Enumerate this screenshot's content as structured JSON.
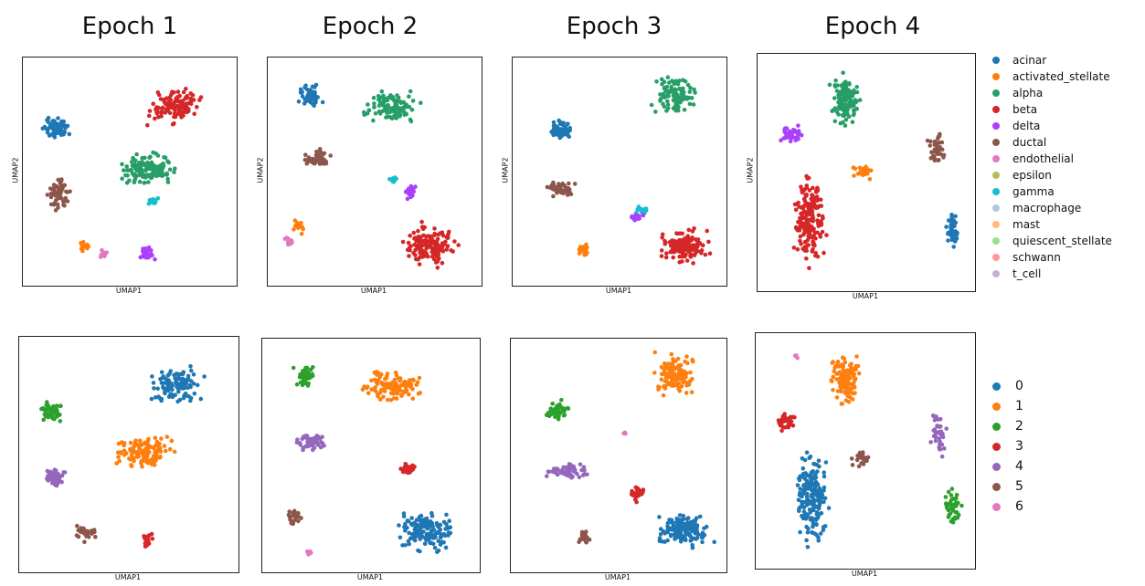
{
  "titles": [
    "Epoch 1",
    "Epoch 2",
    "Epoch 3",
    "Epoch 4"
  ],
  "axis": {
    "x": "UMAP1",
    "y": "UMAP2"
  },
  "legend_celltype": [
    {
      "label": "acinar",
      "color": "#1f77b4"
    },
    {
      "label": "activated_stellate",
      "color": "#ff7f0e"
    },
    {
      "label": "alpha",
      "color": "#279e68"
    },
    {
      "label": "beta",
      "color": "#d62728"
    },
    {
      "label": "delta",
      "color": "#aa40fc"
    },
    {
      "label": "ductal",
      "color": "#8c564b"
    },
    {
      "label": "endothelial",
      "color": "#e377c2"
    },
    {
      "label": "epsilon",
      "color": "#b5bd61"
    },
    {
      "label": "gamma",
      "color": "#17becf"
    },
    {
      "label": "macrophage",
      "color": "#aec7e8"
    },
    {
      "label": "mast",
      "color": "#ffbb78"
    },
    {
      "label": "quiescent_stellate",
      "color": "#98df8a"
    },
    {
      "label": "schwann",
      "color": "#ff9896"
    },
    {
      "label": "t_cell",
      "color": "#c5b0d5"
    }
  ],
  "legend_cluster": [
    {
      "label": "0",
      "color": "#1f77b4"
    },
    {
      "label": "1",
      "color": "#ff7f0e"
    },
    {
      "label": "2",
      "color": "#2ca02c"
    },
    {
      "label": "3",
      "color": "#d62728"
    },
    {
      "label": "4",
      "color": "#9467bd"
    },
    {
      "label": "5",
      "color": "#8c564b"
    },
    {
      "label": "6",
      "color": "#e377c2"
    }
  ],
  "chart_data": [
    {
      "type": "scatter",
      "title": "Epoch 1",
      "xlabel": "UMAP1",
      "ylabel": "UMAP2",
      "color_by": "cell_type",
      "clusters": [
        {
          "label": "beta",
          "x": 0.72,
          "y": 0.8,
          "rx": 0.16,
          "ry": 0.1,
          "n": 120
        },
        {
          "label": "acinar",
          "x": 0.14,
          "y": 0.7,
          "rx": 0.08,
          "ry": 0.06,
          "n": 60
        },
        {
          "label": "ductal",
          "x": 0.15,
          "y": 0.4,
          "rx": 0.07,
          "ry": 0.1,
          "n": 60
        },
        {
          "label": "alpha",
          "x": 0.58,
          "y": 0.51,
          "rx": 0.18,
          "ry": 0.09,
          "n": 130
        },
        {
          "label": "gamma",
          "x": 0.62,
          "y": 0.36,
          "rx": 0.04,
          "ry": 0.03,
          "n": 15
        },
        {
          "label": "activated_stellate",
          "x": 0.27,
          "y": 0.15,
          "rx": 0.04,
          "ry": 0.03,
          "n": 15
        },
        {
          "label": "endothelial",
          "x": 0.37,
          "y": 0.12,
          "rx": 0.03,
          "ry": 0.03,
          "n": 10
        },
        {
          "label": "delta",
          "x": 0.59,
          "y": 0.12,
          "rx": 0.05,
          "ry": 0.05,
          "n": 30
        }
      ]
    },
    {
      "type": "scatter",
      "title": "Epoch 2",
      "xlabel": "UMAP1",
      "ylabel": "UMAP2",
      "color_by": "cell_type",
      "clusters": [
        {
          "label": "acinar",
          "x": 0.18,
          "y": 0.85,
          "rx": 0.07,
          "ry": 0.07,
          "n": 50
        },
        {
          "label": "alpha",
          "x": 0.58,
          "y": 0.8,
          "rx": 0.17,
          "ry": 0.09,
          "n": 110
        },
        {
          "label": "ductal",
          "x": 0.22,
          "y": 0.56,
          "rx": 0.09,
          "ry": 0.05,
          "n": 50
        },
        {
          "label": "gamma",
          "x": 0.59,
          "y": 0.46,
          "rx": 0.03,
          "ry": 0.03,
          "n": 10
        },
        {
          "label": "delta",
          "x": 0.68,
          "y": 0.41,
          "rx": 0.04,
          "ry": 0.05,
          "n": 25
        },
        {
          "label": "beta",
          "x": 0.76,
          "y": 0.16,
          "rx": 0.17,
          "ry": 0.12,
          "n": 140
        },
        {
          "label": "activated_stellate",
          "x": 0.13,
          "y": 0.25,
          "rx": 0.04,
          "ry": 0.04,
          "n": 15
        },
        {
          "label": "endothelial",
          "x": 0.08,
          "y": 0.18,
          "rx": 0.03,
          "ry": 0.03,
          "n": 10
        }
      ]
    },
    {
      "type": "scatter",
      "title": "Epoch 3",
      "xlabel": "UMAP1",
      "ylabel": "UMAP2",
      "color_by": "cell_type",
      "clusters": [
        {
          "label": "alpha",
          "x": 0.77,
          "y": 0.85,
          "rx": 0.13,
          "ry": 0.11,
          "n": 110
        },
        {
          "label": "acinar",
          "x": 0.21,
          "y": 0.69,
          "rx": 0.07,
          "ry": 0.06,
          "n": 50
        },
        {
          "label": "ductal",
          "x": 0.22,
          "y": 0.42,
          "rx": 0.11,
          "ry": 0.04,
          "n": 50
        },
        {
          "label": "gamma",
          "x": 0.61,
          "y": 0.32,
          "rx": 0.04,
          "ry": 0.03,
          "n": 15
        },
        {
          "label": "delta",
          "x": 0.58,
          "y": 0.29,
          "rx": 0.05,
          "ry": 0.03,
          "n": 20
        },
        {
          "label": "beta",
          "x": 0.82,
          "y": 0.16,
          "rx": 0.16,
          "ry": 0.1,
          "n": 140
        },
        {
          "label": "activated_stellate",
          "x": 0.32,
          "y": 0.13,
          "rx": 0.04,
          "ry": 0.05,
          "n": 20
        }
      ]
    },
    {
      "type": "scatter",
      "title": "Epoch 4",
      "xlabel": "UMAP1",
      "ylabel": "UMAP2",
      "color_by": "cell_type",
      "clusters": [
        {
          "label": "alpha",
          "x": 0.4,
          "y": 0.82,
          "rx": 0.1,
          "ry": 0.14,
          "n": 120
        },
        {
          "label": "delta",
          "x": 0.14,
          "y": 0.67,
          "rx": 0.06,
          "ry": 0.05,
          "n": 40
        },
        {
          "label": "beta",
          "x": 0.22,
          "y": 0.3,
          "rx": 0.1,
          "ry": 0.24,
          "n": 180
        },
        {
          "label": "activated_stellate",
          "x": 0.49,
          "y": 0.5,
          "rx": 0.06,
          "ry": 0.04,
          "n": 25
        },
        {
          "label": "ductal",
          "x": 0.84,
          "y": 0.6,
          "rx": 0.05,
          "ry": 0.11,
          "n": 40
        },
        {
          "label": "acinar",
          "x": 0.92,
          "y": 0.25,
          "rx": 0.04,
          "ry": 0.11,
          "n": 40
        }
      ]
    },
    {
      "type": "scatter",
      "title": "",
      "xlabel": "UMAP1",
      "ylabel": "",
      "color_by": "cluster",
      "clusters": [
        {
          "label": "0",
          "x": 0.73,
          "y": 0.81,
          "rx": 0.16,
          "ry": 0.1,
          "n": 120
        },
        {
          "label": "2",
          "x": 0.13,
          "y": 0.7,
          "rx": 0.07,
          "ry": 0.06,
          "n": 55
        },
        {
          "label": "1",
          "x": 0.57,
          "y": 0.51,
          "rx": 0.18,
          "ry": 0.09,
          "n": 130
        },
        {
          "label": "4",
          "x": 0.15,
          "y": 0.4,
          "rx": 0.07,
          "ry": 0.05,
          "n": 45
        },
        {
          "label": "5",
          "x": 0.3,
          "y": 0.15,
          "rx": 0.07,
          "ry": 0.05,
          "n": 25
        },
        {
          "label": "3",
          "x": 0.59,
          "y": 0.12,
          "rx": 0.04,
          "ry": 0.05,
          "n": 25
        }
      ]
    },
    {
      "type": "scatter",
      "title": "",
      "xlabel": "UMAP1",
      "ylabel": "",
      "color_by": "cluster",
      "clusters": [
        {
          "label": "2",
          "x": 0.18,
          "y": 0.86,
          "rx": 0.06,
          "ry": 0.07,
          "n": 45
        },
        {
          "label": "1",
          "x": 0.6,
          "y": 0.81,
          "rx": 0.17,
          "ry": 0.09,
          "n": 110
        },
        {
          "label": "4",
          "x": 0.22,
          "y": 0.56,
          "rx": 0.09,
          "ry": 0.05,
          "n": 45
        },
        {
          "label": "3",
          "x": 0.68,
          "y": 0.44,
          "rx": 0.06,
          "ry": 0.05,
          "n": 25
        },
        {
          "label": "0",
          "x": 0.76,
          "y": 0.16,
          "rx": 0.16,
          "ry": 0.12,
          "n": 140
        },
        {
          "label": "5",
          "x": 0.13,
          "y": 0.23,
          "rx": 0.04,
          "ry": 0.06,
          "n": 20
        },
        {
          "label": "6",
          "x": 0.2,
          "y": 0.06,
          "rx": 0.02,
          "ry": 0.02,
          "n": 5
        }
      ]
    },
    {
      "type": "scatter",
      "title": "",
      "xlabel": "UMAP1",
      "ylabel": "",
      "color_by": "cluster",
      "clusters": [
        {
          "label": "1",
          "x": 0.77,
          "y": 0.86,
          "rx": 0.13,
          "ry": 0.11,
          "n": 110
        },
        {
          "label": "2",
          "x": 0.2,
          "y": 0.7,
          "rx": 0.07,
          "ry": 0.06,
          "n": 45
        },
        {
          "label": "4",
          "x": 0.25,
          "y": 0.43,
          "rx": 0.13,
          "ry": 0.04,
          "n": 50
        },
        {
          "label": "3",
          "x": 0.59,
          "y": 0.33,
          "rx": 0.06,
          "ry": 0.05,
          "n": 30
        },
        {
          "label": "0",
          "x": 0.82,
          "y": 0.17,
          "rx": 0.16,
          "ry": 0.1,
          "n": 140
        },
        {
          "label": "5",
          "x": 0.33,
          "y": 0.13,
          "rx": 0.04,
          "ry": 0.05,
          "n": 25
        },
        {
          "label": "6",
          "x": 0.53,
          "y": 0.6,
          "rx": 0.01,
          "ry": 0.01,
          "n": 3
        }
      ]
    },
    {
      "type": "scatter",
      "title": "",
      "xlabel": "UMAP1",
      "ylabel": "",
      "color_by": "cluster",
      "clusters": [
        {
          "label": "1",
          "x": 0.41,
          "y": 0.82,
          "rx": 0.1,
          "ry": 0.14,
          "n": 120
        },
        {
          "label": "3",
          "x": 0.12,
          "y": 0.63,
          "rx": 0.06,
          "ry": 0.05,
          "n": 40
        },
        {
          "label": "0",
          "x": 0.24,
          "y": 0.3,
          "rx": 0.1,
          "ry": 0.25,
          "n": 180
        },
        {
          "label": "5",
          "x": 0.48,
          "y": 0.46,
          "rx": 0.06,
          "ry": 0.05,
          "n": 25
        },
        {
          "label": "4",
          "x": 0.85,
          "y": 0.58,
          "rx": 0.05,
          "ry": 0.12,
          "n": 40
        },
        {
          "label": "2",
          "x": 0.92,
          "y": 0.25,
          "rx": 0.05,
          "ry": 0.11,
          "n": 40
        },
        {
          "label": "6",
          "x": 0.17,
          "y": 0.92,
          "rx": 0.01,
          "ry": 0.02,
          "n": 4
        }
      ]
    }
  ]
}
